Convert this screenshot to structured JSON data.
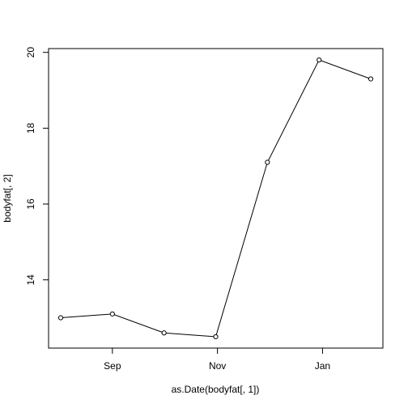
{
  "chart_data": {
    "type": "line",
    "title": "",
    "xlabel": "as.Date(bodyfat[, 1])",
    "ylabel": "bodyfat[, 2]",
    "x": [
      "Aug 2",
      "Sep 1",
      "Oct 1",
      "Oct 31",
      "Nov 30",
      "Dec 30",
      "Jan 29"
    ],
    "x_ticks": [
      "Sep",
      "Nov",
      "Jan"
    ],
    "y_ticks": [
      "14",
      "16",
      "18",
      "20"
    ],
    "ylim": [
      12.2,
      20.1
    ],
    "series": [
      {
        "values": [
          13.0,
          13.1,
          12.6,
          12.5,
          17.1,
          19.8,
          19.3
        ]
      }
    ],
    "grid": false,
    "marker": "open-circle",
    "line_color": "#000000"
  }
}
